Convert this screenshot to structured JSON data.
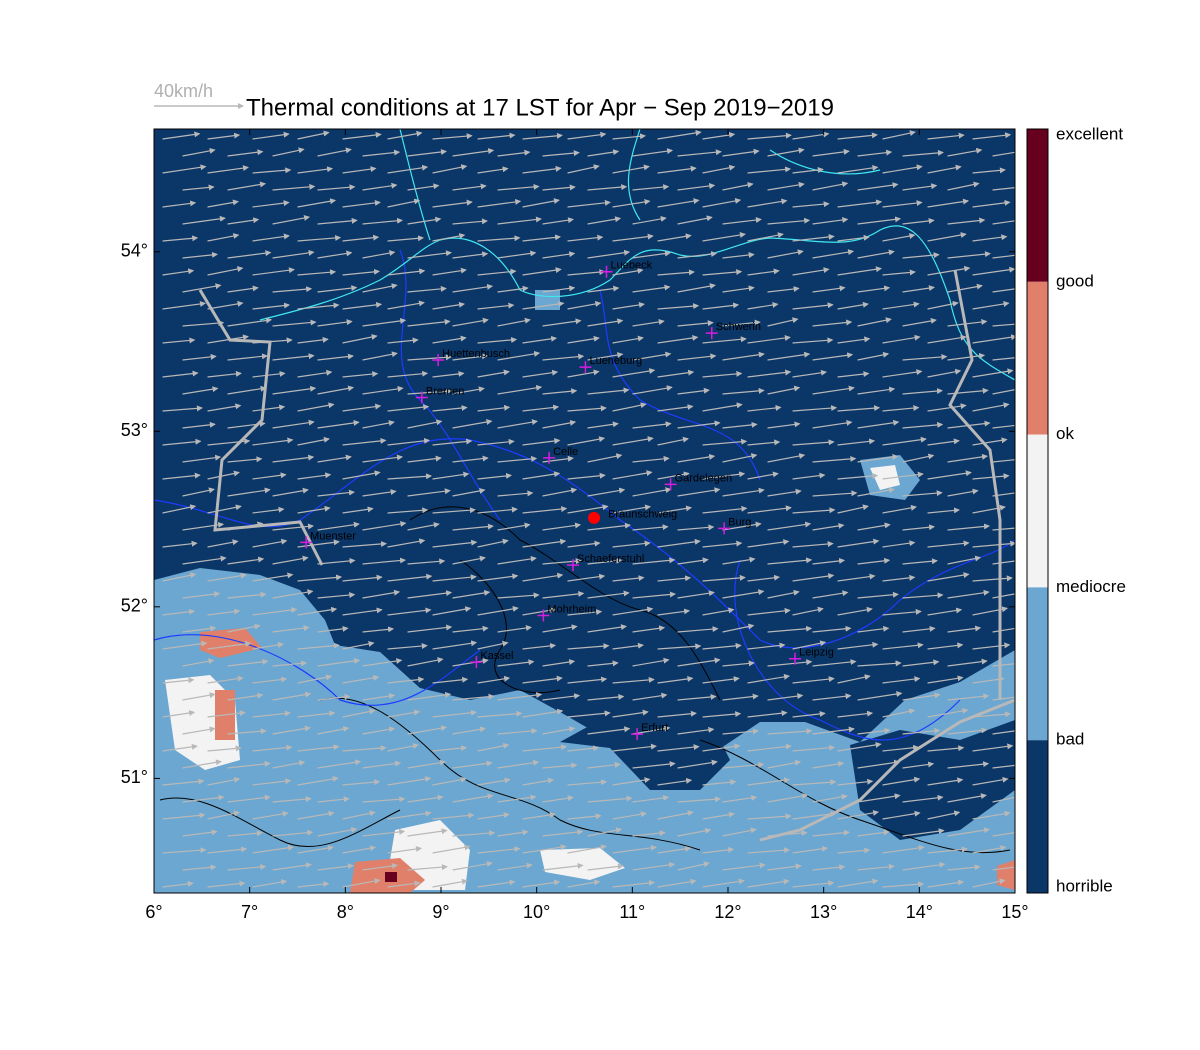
{
  "map": {
    "title": "Thermal conditions at 17 LST for Apr − Sep  2019−2019",
    "scale_label": "40km/h",
    "xlim": [
      6,
      15
    ],
    "ylim": [
      50.32,
      54.67
    ],
    "xticks": [
      {
        "value": 6,
        "label": "6°"
      },
      {
        "value": 7,
        "label": "7°"
      },
      {
        "value": 8,
        "label": "8°"
      },
      {
        "value": 9,
        "label": "9°"
      },
      {
        "value": 10,
        "label": "10°"
      },
      {
        "value": 11,
        "label": "11°"
      },
      {
        "value": 12,
        "label": "12°"
      },
      {
        "value": 13,
        "label": "13°"
      },
      {
        "value": 14,
        "label": "14°"
      },
      {
        "value": 15,
        "label": "15°"
      }
    ],
    "yticks": [
      {
        "value": 51,
        "label": "51°"
      },
      {
        "value": 52,
        "label": "52°"
      },
      {
        "value": 53,
        "label": "53°"
      },
      {
        "value": 54,
        "label": "54°"
      }
    ],
    "colorbar": {
      "labels": [
        "excellent",
        "good",
        "ok",
        "mediocre",
        "bad",
        "horrible"
      ],
      "colors": [
        "#67001f",
        "#e0806a",
        "#f3f3f3",
        "#6ba7d0",
        "#0b3668"
      ]
    },
    "site": {
      "name": "Braunschweig",
      "lon": 10.6,
      "lat": 52.51
    },
    "cities": [
      {
        "name": "Luebeck",
        "lon": 10.73,
        "lat": 53.89
      },
      {
        "name": "Schwerin",
        "lon": 11.83,
        "lat": 53.55
      },
      {
        "name": "Huettenbusch",
        "lon": 8.97,
        "lat": 53.4
      },
      {
        "name": "Lueneburg",
        "lon": 10.51,
        "lat": 53.36
      },
      {
        "name": "Bremen",
        "lon": 8.8,
        "lat": 53.19
      },
      {
        "name": "Celle",
        "lon": 10.13,
        "lat": 52.85
      },
      {
        "name": "Gardelegen",
        "lon": 11.4,
        "lat": 52.7
      },
      {
        "name": "Burg",
        "lon": 11.96,
        "lat": 52.45
      },
      {
        "name": "Muenster",
        "lon": 7.59,
        "lat": 52.37
      },
      {
        "name": "Schaeferstuhl",
        "lon": 10.38,
        "lat": 52.24
      },
      {
        "name": "Mohrheim",
        "lon": 10.07,
        "lat": 51.95
      },
      {
        "name": "Kassel",
        "lon": 9.37,
        "lat": 51.68
      },
      {
        "name": "Leipzig",
        "lon": 12.7,
        "lat": 51.7
      },
      {
        "name": "Erfurt",
        "lon": 11.05,
        "lat": 51.26
      }
    ]
  }
}
